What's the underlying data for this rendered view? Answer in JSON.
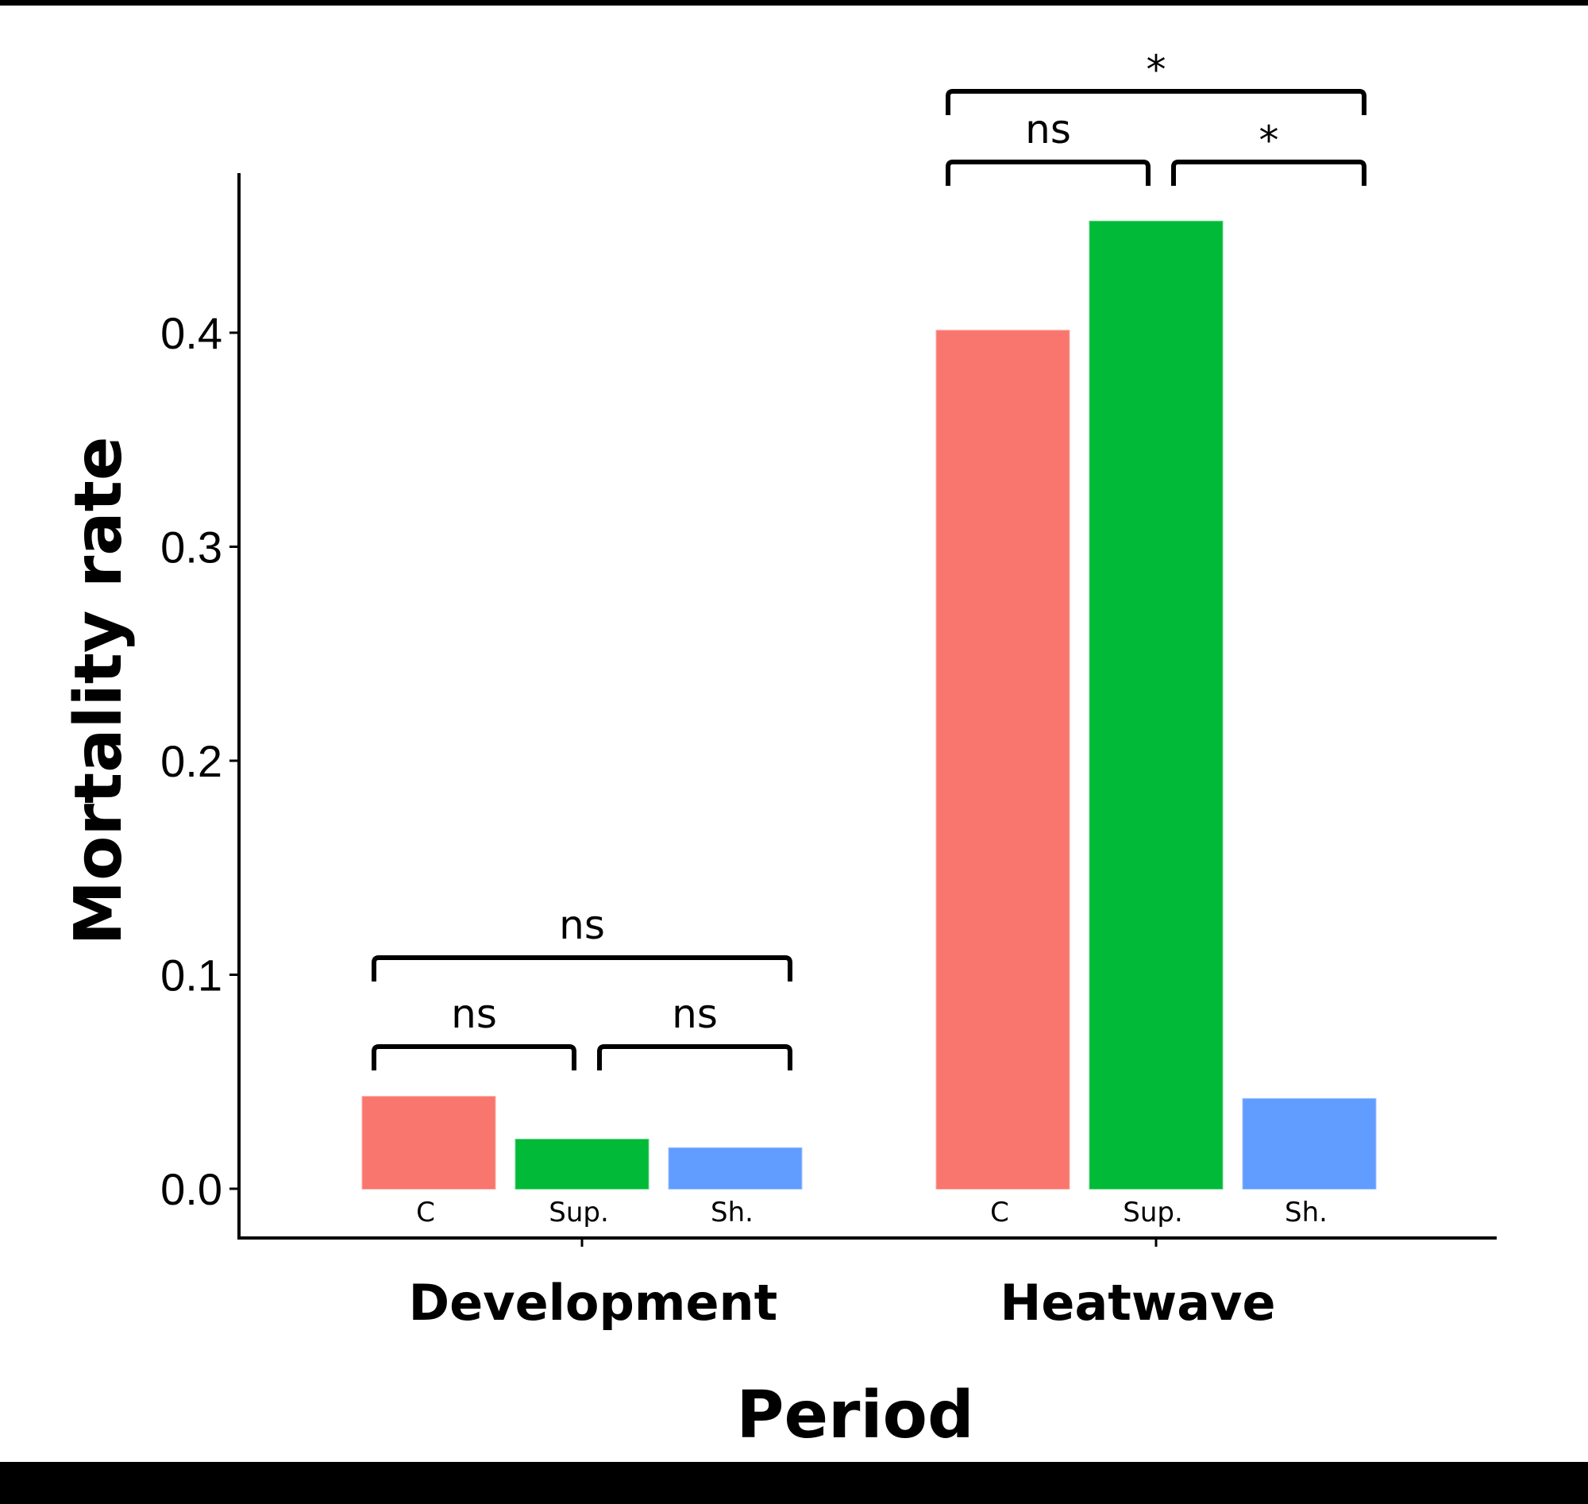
{
  "chart_data": {
    "type": "bar",
    "title": "",
    "xlabel": "Period",
    "ylabel": "Mortality rate",
    "ylim": [
      -0.023,
      0.475
    ],
    "yticks": [
      0.0,
      0.1,
      0.2,
      0.3,
      0.4
    ],
    "ytick_labels": [
      "0.0",
      "0.1",
      "0.2",
      "0.3",
      "0.4"
    ],
    "grid": false,
    "legend": "none",
    "categories": [
      "Development",
      "Heatwave"
    ],
    "subcategories": [
      "C",
      "Sup.",
      "Sh."
    ],
    "series": [
      {
        "name": "C",
        "color": "#F8766D",
        "values": [
          0.043,
          0.401
        ]
      },
      {
        "name": "Sup.",
        "color": "#00BA38",
        "values": [
          0.023,
          0.452
        ]
      },
      {
        "name": "Sh.",
        "color": "#619CFF",
        "values": [
          0.019,
          0.042
        ]
      }
    ],
    "annotations": [
      {
        "group": "Development",
        "from": "C",
        "to": "Sup.",
        "label": "ns",
        "level": 1
      },
      {
        "group": "Development",
        "from": "Sup.",
        "to": "Sh.",
        "label": "ns",
        "level": 1
      },
      {
        "group": "Development",
        "from": "C",
        "to": "Sh.",
        "label": "ns",
        "level": 2
      },
      {
        "group": "Heatwave",
        "from": "C",
        "to": "Sup.",
        "label": "ns",
        "level": 1
      },
      {
        "group": "Heatwave",
        "from": "Sup.",
        "to": "Sh.",
        "label": "*",
        "level": 1
      },
      {
        "group": "Heatwave",
        "from": "C",
        "to": "Sh.",
        "label": "*",
        "level": 2
      }
    ]
  },
  "colors": {
    "frame": "#000000",
    "background": "#ffffff"
  }
}
